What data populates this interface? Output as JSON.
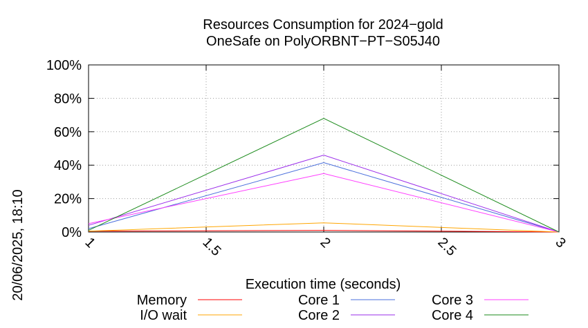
{
  "chart_data": {
    "type": "line",
    "title": "Resources Consumption for 2024−gold",
    "subtitle": "OneSafe on PolyORBNT−PT−S05J40",
    "xlabel": "Execution time (seconds)",
    "side_label": "20/06/2025, 18:10",
    "xlim": [
      1,
      3
    ],
    "ylim": [
      0,
      100
    ],
    "xticks": [
      1,
      1.5,
      2,
      2.5,
      3
    ],
    "xtick_labels": [
      "1",
      "1.5",
      "2",
      "2.5",
      "3"
    ],
    "yticks": [
      0,
      20,
      40,
      60,
      80,
      100
    ],
    "ytick_labels": [
      "0%",
      "20%",
      "40%",
      "60%",
      "80%",
      "100%"
    ],
    "grid": true,
    "legend_position": "bottom",
    "x": [
      1,
      2,
      3
    ],
    "series": [
      {
        "name": "Memory",
        "color": "#ff0000",
        "values": [
          0.5,
          1,
          0
        ]
      },
      {
        "name": "I/O wait",
        "color": "#ffa500",
        "values": [
          0.5,
          5.5,
          0
        ]
      },
      {
        "name": "Core 1",
        "color": "#4a6fdc",
        "values": [
          2,
          41.5,
          0
        ]
      },
      {
        "name": "Core 2",
        "color": "#9a2bea",
        "values": [
          4,
          46,
          0
        ]
      },
      {
        "name": "Core 3",
        "color": "#ff3cff",
        "values": [
          5,
          35,
          0
        ]
      },
      {
        "name": "Core 4",
        "color": "#1a8a1a",
        "values": [
          1,
          68,
          0
        ]
      }
    ]
  }
}
